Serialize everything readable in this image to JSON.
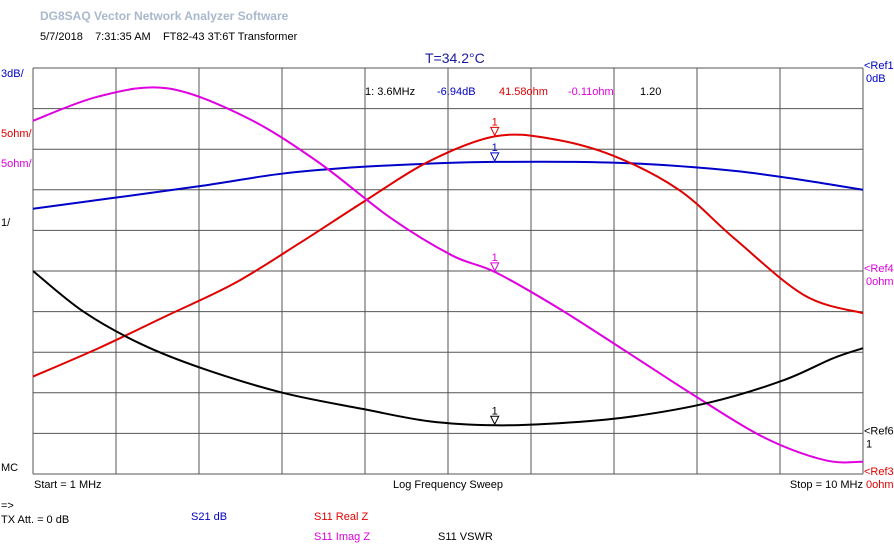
{
  "app_title": "DG8SAQ Vector Network Analyzer Software",
  "subtitle": {
    "date": "5/7/2018",
    "time": "7:31:35 AM",
    "device": "FT82-43 3T:6T Transformer"
  },
  "temperature": "T=34.2°C",
  "colors": {
    "blue": "#0000c8",
    "red": "#e00000",
    "magenta": "#e000e0",
    "black": "#000000",
    "grid": "#555555"
  },
  "left_scale_labels": [
    {
      "text": "3dB/",
      "color": "#0000c8"
    },
    {
      "text": "5ohm/",
      "color": "#e00000"
    },
    {
      "text": "5ohm/",
      "color": "#e000e0"
    },
    {
      "text": "1/",
      "color": "#000000"
    },
    {
      "text": "MC",
      "color": "#000000"
    }
  ],
  "right_refs": [
    {
      "line1": "<Ref1",
      "line2": "0dB",
      "color": "#0000c8"
    },
    {
      "line1": "<Ref4",
      "line2": "0ohm",
      "color": "#e000e0"
    },
    {
      "line1": "<Ref6",
      "line2": "1",
      "color": "#000000"
    },
    {
      "line1": "<Ref3",
      "line2": "0ohm",
      "color": "#e00000"
    }
  ],
  "marker_readout": {
    "marker": "1: 3.6MHz",
    "s21_db": "-6.94dB",
    "real_z": "41.58ohm",
    "imag_z": "-0.11ohm",
    "vswr": "1.20"
  },
  "axis": {
    "start": "Start = 1 MHz",
    "sweep": "Log Frequency Sweep",
    "stop": "Stop = 10 MHz"
  },
  "footer": {
    "arrow": "=>",
    "tx_att": "TX Att.  = 0 dB",
    "s21_db": "S21  dB",
    "s11_real": "S11  Real Z",
    "s11_imag": "S11  Imag Z",
    "s11_vswr": "S11  VSWR"
  },
  "chart_data": {
    "type": "line",
    "title": "T=34.2°C",
    "x_scale": "log",
    "xlim_mhz": [
      1,
      10
    ],
    "x_divisions": 10,
    "y_divisions": 10,
    "grid": true,
    "marker": {
      "label": "1",
      "freq_mhz": 3.6
    },
    "series": [
      {
        "name": "S21 dB",
        "color": "#0000c8",
        "unit": "dB",
        "ref": 0,
        "per_div": 3,
        "ref_div": 10,
        "x": [
          1,
          1.25,
          1.6,
          2,
          2.5,
          3.2,
          3.6,
          4.5,
          5.5,
          7,
          8.5,
          10
        ],
        "y": [
          -10.4,
          -9.6,
          -8.7,
          -7.8,
          -7.3,
          -7.0,
          -6.94,
          -6.94,
          -7.1,
          -7.6,
          -8.3,
          -9.0
        ]
      },
      {
        "name": "S11 Real Z",
        "color": "#e00000",
        "unit": "ohm",
        "ref": 0,
        "per_div": 5,
        "ref_div": 0,
        "x": [
          1,
          1.2,
          1.45,
          1.75,
          2.1,
          2.5,
          3,
          3.6,
          4.2,
          5,
          6,
          7,
          8.5,
          10
        ],
        "y": [
          12.0,
          15.5,
          19.5,
          23.5,
          28.5,
          33.5,
          38.5,
          41.58,
          41.3,
          39.2,
          35.0,
          29.0,
          22.0,
          19.8
        ]
      },
      {
        "name": "S11 Imag Z",
        "color": "#e000e0",
        "unit": "ohm",
        "ref": 0,
        "per_div": 5,
        "ref_div": 5,
        "x": [
          1,
          1.2,
          1.45,
          1.8,
          2.2,
          2.7,
          3.2,
          3.6,
          4.3,
          5.2,
          6.3,
          7.6,
          9,
          10
        ],
        "y": [
          18.5,
          21.5,
          22.5,
          19.0,
          13.5,
          6.5,
          1.9,
          -0.11,
          -4.6,
          -10.0,
          -15.5,
          -20.5,
          -23.3,
          -23.5
        ]
      },
      {
        "name": "S11 VSWR",
        "color": "#000000",
        "unit": "",
        "ref": 1,
        "per_div": 1,
        "ref_div": 1,
        "x": [
          1,
          1.15,
          1.35,
          1.6,
          2,
          2.5,
          3,
          3.6,
          4.3,
          5.2,
          6.5,
          8,
          9.2,
          10
        ],
        "y": [
          5.0,
          4.0,
          3.2,
          2.6,
          2.0,
          1.6,
          1.3,
          1.2,
          1.25,
          1.4,
          1.75,
          2.3,
          2.85,
          3.1
        ]
      }
    ]
  }
}
